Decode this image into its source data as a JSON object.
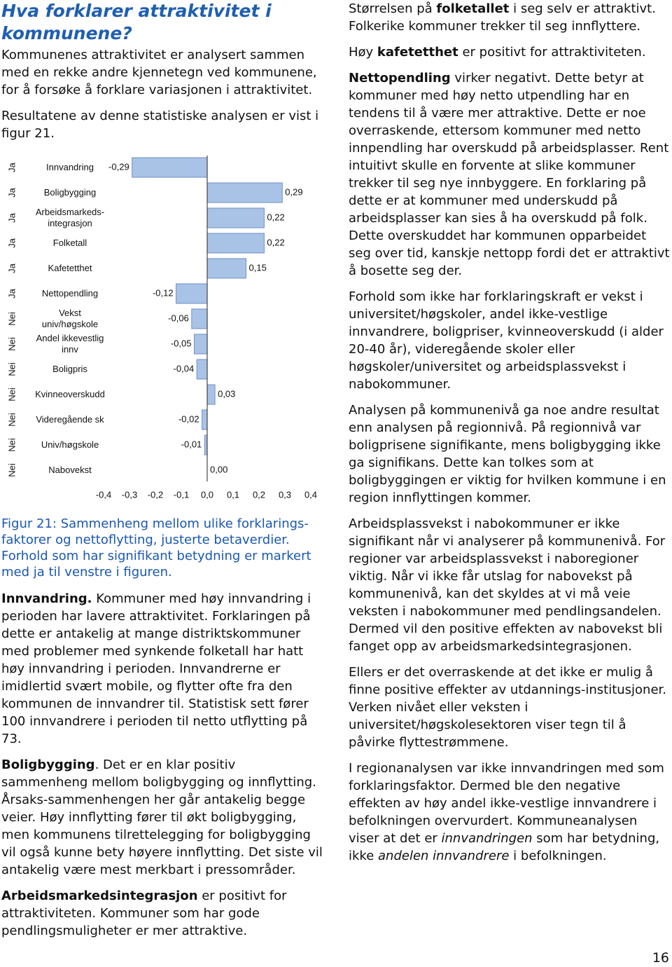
{
  "title": "Hva forklarer attraktivitet i kommunene?",
  "intro": [
    "Kommunenes attraktivitet er analysert sammen med en rekke andre kjennetegn ved kommunene, for å forsøke å forklare variasjonen i attraktivitet.",
    "Resultatene av denne statistiske analysen er vist i figur 21."
  ],
  "chart_data": {
    "type": "bar",
    "orientation": "horizontal",
    "categories": [
      "Innvandring",
      "Boligbygging",
      "Arbeidsmarkeds-\nintegrasjon",
      "Folketall",
      "Kafetetthet",
      "Nettopendling",
      "Vekst\nuniv/høgskole",
      "Andel ikkevestlig\ninnv",
      "Boligpris",
      "Kvinneoverskudd",
      "Videregående sk",
      "Univ/høgskole",
      "Nabovekst"
    ],
    "significance": [
      "Ja",
      "Ja",
      "Ja",
      "Ja",
      "Ja",
      "Ja",
      "Nei",
      "Nei",
      "Nei",
      "Nei",
      "Nei",
      "Nei",
      "Nei"
    ],
    "values": [
      -0.29,
      0.29,
      0.22,
      0.22,
      0.15,
      -0.12,
      -0.06,
      -0.05,
      -0.04,
      0.03,
      -0.02,
      -0.01,
      0.0
    ],
    "value_labels": [
      "-0,29",
      "0,29",
      "0,22",
      "0,22",
      "0,15",
      "-0,12",
      "-0,06",
      "-0,05",
      "-0,04",
      "0,03",
      "-0,02",
      "-0,01",
      "0,00"
    ],
    "color": "#a8c3e6",
    "xlim": [
      -0.4,
      0.4
    ],
    "xticks": [
      {
        "value": -0.4,
        "label": "-0,4"
      },
      {
        "value": -0.3,
        "label": "-0,3"
      },
      {
        "value": -0.2,
        "label": "-0,2"
      },
      {
        "value": -0.1,
        "label": "-0,1"
      },
      {
        "value": 0,
        "label": "0,0"
      },
      {
        "value": 0.1,
        "label": "0,1"
      },
      {
        "value": 0.2,
        "label": "0,2"
      },
      {
        "value": 0.3,
        "label": "0,3"
      },
      {
        "value": 0.4,
        "label": "0,4"
      }
    ]
  },
  "caption": "Figur 21: Sammenheng mellom ulike forklarings-faktorer og nettoflytting, justerte betaverdier. Forhold som har signifikant betydning er markert med ja til venstre i figuren.",
  "left_sections": [
    [
      "Innvandring.",
      " Kommuner med høy innvandring i perioden har lavere attraktivitet. Forklaringen på dette er antakelig at mange distriktskommuner med problemer med synkende folketall har hatt høy innvandring i perioden. Innvandrerne er imidlertid svært mobile, og flytter ofte fra den kommunen de innvandrer til. Statistisk sett fører 100 innvandrere i perioden til netto utflytting på 73."
    ],
    [
      "Boligbygging",
      ". Det er en klar positiv sammenheng mellom boligbygging og innflytting. Årsaks-sammenhengen her går antakelig begge veier. Høy innflytting fører til økt boligbygging, men kommunens tilrettelegging for boligbygging vil også kunne bety høyere innflytting. Det siste vil antakelig være mest merkbart i pressområder."
    ],
    [
      "Arbeidsmarkedsintegrasjon",
      " er positivt for attraktiviteten. Kommuner som har gode pendlingsmuligheter er mer attraktive."
    ]
  ],
  "right_paragraphs": [
    [
      "Størrelsen på ",
      "folketallet",
      " i seg selv er attraktivt. Folkerike kommuner trekker til seg innflyttere."
    ],
    [
      "Høy ",
      "kafetetthet",
      " er positivt for attraktiviteten."
    ],
    [
      "Nettopendling",
      " virker negativt. Dette betyr at kommuner med høy netto utpendling har en tendens til å være mer attraktive. Dette er noe overraskende, ettersom kommuner med netto innpendling har overskudd på arbeidsplasser. Rent intuitivt skulle en forvente at slike kommuner trekker til seg nye innbyggere. En forklaring på dette er at kommuner med underskudd på arbeidsplasser kan sies å ha overskudd på folk. Dette overskuddet har kommunen opparbeidet seg over tid, kanskje nettopp fordi det er attraktivt å bosette seg der."
    ],
    [
      "Forhold som ikke har forklaringskraft er vekst i universitet/høgskoler, andel ikke-vestlige innvandrere, boligpriser, kvinneoverskudd (i alder 20-40 år), videregående skoler eller høgskoler/universitet og arbeidsplassvekst i nabokommuner."
    ],
    [
      "Analysen på kommunenivå ga noe andre resultat enn analysen på regionnivå. På regionnivå var boligprisene signifikante, mens boligbygging ikke ga signifikans. Dette kan tolkes som at boligbyggingen er viktig for hvilken kommune i en region innflyttingen kommer."
    ],
    [
      "Arbeidsplassvekst i nabokommuner er ikke signifikant når vi analyserer på kommunenivå. For regioner var arbeidsplassvekst i naboregioner viktig. Når vi ikke får utslag for nabovekst på kommunenivå, kan det skyldes at vi må veie veksten i nabokommuner med pendlingsandelen. Dermed vil den positive effekten av nabovekst bli fanget opp av arbeidsmarkedsintegrasjonen."
    ],
    [
      "Ellers er det overraskende at det ikke er mulig å finne positive effekter av utdannings-institusjoner. Verken nivået eller veksten i universitet/høgskolesektoren viser tegn til å påvirke flyttestrømmene."
    ],
    [
      "I regionanalysen var ikke innvandringen med som forklaringsfaktor. Dermed ble den negative effekten av høy andel ikke-vestlige innvandrere i befolkningen overvurdert. Kommuneanalysen viser at det er ",
      "innvandringen",
      " som har betydning, ikke ",
      "andelen innvandrere",
      " i befolkningen."
    ]
  ],
  "page_number": "16"
}
